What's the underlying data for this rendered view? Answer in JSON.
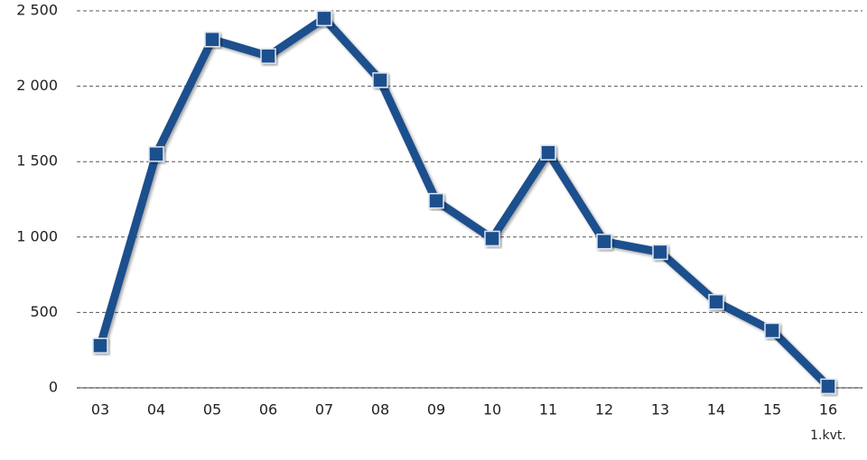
{
  "chart_data": {
    "type": "line",
    "categories": [
      "03",
      "04",
      "05",
      "06",
      "07",
      "08",
      "09",
      "10",
      "11",
      "12",
      "13",
      "14",
      "15",
      "16"
    ],
    "values": [
      280,
      1550,
      2310,
      2200,
      2450,
      2040,
      1240,
      990,
      1560,
      970,
      900,
      570,
      380,
      10
    ],
    "color": "#1c4f8d",
    "annotations": [
      "1.kvt."
    ],
    "ylim": [
      0,
      2500
    ],
    "yticks": [
      0,
      500,
      {
        "value": 1000,
        "label": "1 000"
      },
      {
        "value": 1500,
        "label": "1 500"
      },
      {
        "value": 2000,
        "label": "2 000"
      },
      {
        "value": 2500,
        "label": "2 500"
      }
    ],
    "grid": true
  }
}
